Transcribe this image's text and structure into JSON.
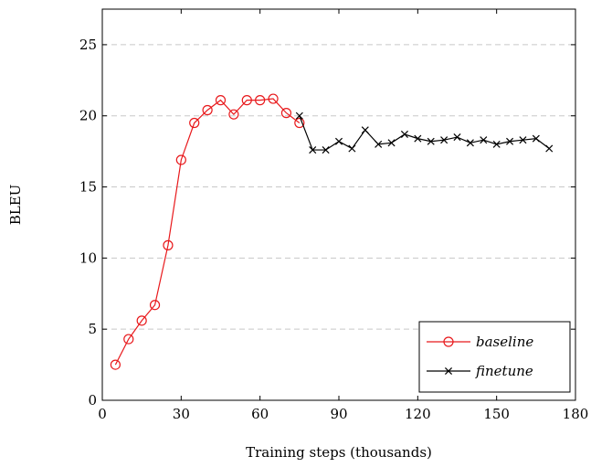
{
  "chart_data": {
    "type": "line",
    "xlabel": "Training steps (thousands)",
    "ylabel": "BLEU",
    "xlim": [
      0,
      180
    ],
    "ylim": [
      0,
      27.5
    ],
    "xticks": [
      0,
      30,
      60,
      90,
      120,
      150,
      180
    ],
    "yticks": [
      0,
      5,
      10,
      15,
      20,
      25
    ],
    "grid": "horizontal dashed",
    "legend_position": "bottom-right",
    "series": [
      {
        "name": "baseline",
        "color": "#e8191c",
        "marker": "circle",
        "x": [
          5,
          10,
          15,
          20,
          25,
          30,
          35,
          40,
          45,
          50,
          55,
          60,
          65,
          70,
          75
        ],
        "y": [
          2.5,
          4.3,
          5.6,
          6.7,
          10.9,
          16.9,
          19.5,
          20.4,
          21.1,
          20.1,
          21.1,
          21.1,
          21.2,
          20.2,
          19.5
        ]
      },
      {
        "name": "finetune",
        "color": "#000000",
        "marker": "x",
        "x": [
          75,
          80,
          85,
          90,
          95,
          100,
          105,
          110,
          115,
          120,
          125,
          130,
          135,
          140,
          145,
          150,
          155,
          160,
          165,
          170
        ],
        "y": [
          20.0,
          17.6,
          17.6,
          18.2,
          17.7,
          19.0,
          18.0,
          18.1,
          18.7,
          18.4,
          18.2,
          18.3,
          18.5,
          18.1,
          18.3,
          18.0,
          18.2,
          18.3,
          18.4,
          17.7
        ]
      }
    ]
  }
}
